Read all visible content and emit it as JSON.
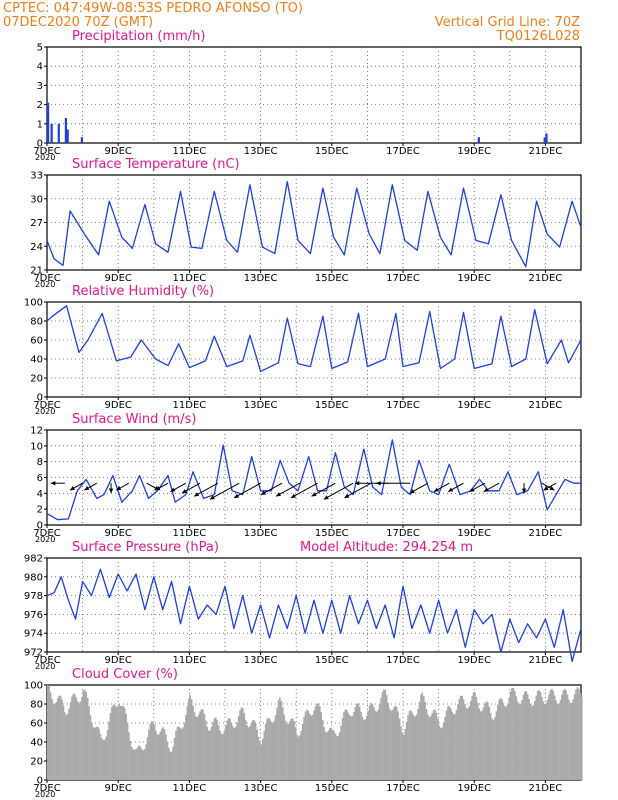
{
  "header": {
    "line1": "CPTEC:  047:49W-08:53S  PEDRO AFONSO (TO)",
    "line2": "07DEC2020 70Z (GMT)",
    "grid_note": "Vertical Grid Line: 70Z",
    "code": "TQ0126L028"
  },
  "colors": {
    "header": "#f07f18",
    "title": "#e0188c",
    "series": "#1f3fe0",
    "cloud": "#a9a9a9",
    "grid": "#606060"
  },
  "x_axis": {
    "ticks": [
      "7DEC",
      "9DEC",
      "11DEC",
      "13DEC",
      "15DEC",
      "17DEC",
      "19DEC",
      "21DEC"
    ],
    "year_label": "2020"
  },
  "chart_data": [
    {
      "type": "bar",
      "title": "Precipitation (mm/h)",
      "ylim": [
        0,
        5
      ],
      "yticks": [
        "0",
        "1",
        "2",
        "3",
        "4",
        "5"
      ],
      "x": [
        7.0,
        7.1,
        7.3,
        7.5,
        7.55,
        7.95,
        19.1,
        20.95,
        21.0
      ],
      "values": [
        2.1,
        1.0,
        1.0,
        1.3,
        0.7,
        0.3,
        0.3,
        0.3,
        0.5
      ]
    },
    {
      "type": "line",
      "title": "Surface Temperature (nC)",
      "ylim": [
        20.5,
        35
      ],
      "yticks": [
        "21",
        "24",
        "27",
        "30",
        "33"
      ],
      "x": [
        7.0,
        7.2,
        7.45,
        7.65,
        8.05,
        8.45,
        8.75,
        9.1,
        9.4,
        9.75,
        10.05,
        10.4,
        10.75,
        11.05,
        11.35,
        11.7,
        12.05,
        12.35,
        12.7,
        13.05,
        13.4,
        13.75,
        14.05,
        14.4,
        14.75,
        15.05,
        15.35,
        15.7,
        16.05,
        16.35,
        16.7,
        17.05,
        17.4,
        17.7,
        18.05,
        18.35,
        18.7,
        19.05,
        19.4,
        19.75,
        20.05,
        20.45,
        20.75,
        21.05,
        21.4,
        21.75,
        22.0
      ],
      "values": [
        25,
        22.2,
        21.2,
        29.5,
        26,
        22.8,
        31,
        25.5,
        23.8,
        30.5,
        24.5,
        23.2,
        32.5,
        24,
        23.8,
        32.5,
        25,
        23.2,
        33.5,
        24,
        23,
        34,
        25,
        23,
        33,
        25.5,
        22.8,
        33,
        26,
        23,
        33.5,
        25,
        23.5,
        32.5,
        25.5,
        22.8,
        33,
        25,
        24.5,
        32,
        25,
        21,
        31,
        26,
        24,
        31,
        27
      ]
    },
    {
      "type": "line",
      "title": "Relative Humidity (%)",
      "ylim": [
        0,
        100
      ],
      "yticks": [
        "0",
        "20",
        "40",
        "60",
        "80",
        "100"
      ],
      "x": [
        7.0,
        7.15,
        7.55,
        7.9,
        8.15,
        8.55,
        8.95,
        9.35,
        9.65,
        10.05,
        10.4,
        10.7,
        11.0,
        11.45,
        11.7,
        12.05,
        12.5,
        12.7,
        13.0,
        13.5,
        13.75,
        14.05,
        14.4,
        14.75,
        15.0,
        15.45,
        15.75,
        16.0,
        16.5,
        16.8,
        17.0,
        17.45,
        17.75,
        18.05,
        18.45,
        18.7,
        19.0,
        19.5,
        19.75,
        20.05,
        20.45,
        20.7,
        21.05,
        21.45,
        21.65,
        22.0
      ],
      "values": [
        80,
        85,
        96,
        47,
        60,
        88,
        38,
        42,
        60,
        40,
        33,
        56,
        31,
        38,
        64,
        32,
        38,
        65,
        27,
        36,
        83,
        35,
        32,
        85,
        30,
        37,
        88,
        32,
        40,
        88,
        32,
        36,
        90,
        30,
        40,
        89,
        30,
        35,
        85,
        32,
        40,
        92,
        35,
        60,
        36,
        60
      ]
    },
    {
      "type": "line",
      "title": "Surface Wind (m/s)",
      "ylim": [
        0,
        12.5
      ],
      "yticks": [
        "0",
        "2",
        "4",
        "6",
        "8",
        "10",
        "12"
      ],
      "x": [
        7.0,
        7.3,
        7.6,
        7.85,
        8.1,
        8.4,
        8.6,
        8.85,
        9.1,
        9.4,
        9.6,
        9.85,
        10.1,
        10.4,
        10.6,
        10.9,
        11.1,
        11.4,
        11.7,
        11.95,
        12.2,
        12.5,
        12.75,
        13.0,
        13.3,
        13.55,
        13.8,
        14.05,
        14.35,
        14.6,
        14.85,
        15.1,
        15.35,
        15.6,
        15.9,
        16.15,
        16.4,
        16.7,
        16.95,
        17.2,
        17.45,
        17.75,
        18.0,
        18.3,
        18.6,
        18.9,
        19.15,
        19.4,
        19.7,
        19.95,
        20.2,
        20.5,
        20.8,
        21.05,
        21.3,
        21.55,
        21.8,
        22.0
      ],
      "values": [
        1.5,
        0.7,
        0.8,
        4.5,
        6,
        3.5,
        4,
        6.5,
        3,
        4.5,
        6.5,
        3.5,
        4.5,
        6.5,
        3,
        4,
        7,
        3.5,
        4,
        10.5,
        4.5,
        4,
        9,
        4.5,
        4.5,
        8.5,
        5.5,
        4.5,
        9,
        4.5,
        4.5,
        9.5,
        5,
        4,
        10,
        5,
        4,
        11.2,
        5,
        4,
        8.5,
        4.5,
        4,
        8,
        4,
        4.5,
        6,
        4.5,
        4.5,
        7,
        4,
        4.5,
        7,
        2,
        4,
        6,
        5.5,
        5.5
      ],
      "arrows": [
        {
          "t": 7.5,
          "speed": 2,
          "dir": "w"
        },
        {
          "t": 8.0,
          "speed": 3,
          "dir": "sw"
        },
        {
          "t": 8.4,
          "speed": 3,
          "dir": "sw"
        },
        {
          "t": 8.8,
          "speed": 3,
          "dir": "s"
        },
        {
          "t": 9.3,
          "speed": 3,
          "dir": "sw"
        },
        {
          "t": 9.8,
          "speed": 3,
          "dir": "se"
        },
        {
          "t": 10.4,
          "speed": 3,
          "dir": "sw"
        },
        {
          "t": 10.9,
          "speed": 4,
          "dir": "sw"
        },
        {
          "t": 11.3,
          "speed": 5,
          "dir": "sw"
        },
        {
          "t": 11.8,
          "speed": 7,
          "dir": "sw"
        },
        {
          "t": 12.4,
          "speed": 9,
          "dir": "sw"
        },
        {
          "t": 13.0,
          "speed": 8,
          "dir": "sw"
        },
        {
          "t": 13.6,
          "speed": 6,
          "dir": "sw"
        },
        {
          "t": 14.1,
          "speed": 7,
          "dir": "sw"
        },
        {
          "t": 14.6,
          "speed": 8,
          "dir": "sw"
        },
        {
          "t": 15.1,
          "speed": 7,
          "dir": "sw"
        },
        {
          "t": 15.6,
          "speed": 9,
          "dir": "sw"
        },
        {
          "t": 16.1,
          "speed": 8,
          "dir": "sw"
        },
        {
          "t": 16.6,
          "speed": 7,
          "dir": "w"
        },
        {
          "t": 17.2,
          "speed": 7,
          "dir": "w"
        },
        {
          "t": 17.7,
          "speed": 5,
          "dir": "sw"
        },
        {
          "t": 18.3,
          "speed": 4,
          "dir": "sw"
        },
        {
          "t": 18.7,
          "speed": 4,
          "dir": "sw"
        },
        {
          "t": 19.3,
          "speed": 4,
          "dir": "sw"
        },
        {
          "t": 19.7,
          "speed": 4,
          "dir": "sw"
        },
        {
          "t": 20.4,
          "speed": 3,
          "dir": "s"
        },
        {
          "t": 20.9,
          "speed": 3,
          "dir": "se"
        },
        {
          "t": 21.3,
          "speed": 3,
          "dir": "sw"
        }
      ]
    },
    {
      "type": "line",
      "title": "Surface Pressure (hPa)",
      "subtitle": "Model Altitude: 294.254 m",
      "ylim": [
        972,
        982
      ],
      "yticks": [
        "972",
        "974",
        "976",
        "978",
        "980",
        "982"
      ],
      "x": [
        7.0,
        7.2,
        7.4,
        7.6,
        7.8,
        8.0,
        8.25,
        8.5,
        8.75,
        9.0,
        9.25,
        9.5,
        9.75,
        10.0,
        10.25,
        10.5,
        10.75,
        11.0,
        11.25,
        11.5,
        11.75,
        12.0,
        12.25,
        12.5,
        12.75,
        13.0,
        13.25,
        13.5,
        13.75,
        14.0,
        14.25,
        14.5,
        14.75,
        15.0,
        15.25,
        15.5,
        15.75,
        16.0,
        16.25,
        16.5,
        16.75,
        17.0,
        17.25,
        17.5,
        17.75,
        18.0,
        18.25,
        18.5,
        18.75,
        19.0,
        19.25,
        19.5,
        19.75,
        20.0,
        20.25,
        20.5,
        20.75,
        21.0,
        21.25,
        21.5,
        21.75,
        22.0
      ],
      "values": [
        978,
        978.3,
        980,
        977.5,
        975.5,
        979.5,
        978,
        980.8,
        977.8,
        980.3,
        978.5,
        980.3,
        976.5,
        980,
        976.5,
        979.5,
        975,
        979,
        975.5,
        977,
        976,
        979,
        974.5,
        978,
        974,
        977,
        973.5,
        977,
        974.5,
        978,
        974,
        977.5,
        974,
        977.5,
        974,
        978,
        975,
        977.5,
        974.5,
        977,
        973.5,
        979,
        974.5,
        977,
        974,
        977.5,
        974,
        976.5,
        972.5,
        976.5,
        975,
        976,
        972,
        975.5,
        973,
        975,
        973.5,
        975.5,
        972.5,
        976.5,
        971,
        974.5
      ]
    },
    {
      "type": "bar",
      "title": "Cloud Cover (%)",
      "ylim": [
        0,
        100
      ],
      "yticks": [
        "0",
        "20",
        "40",
        "60",
        "80",
        "100"
      ],
      "x": [
        7.0,
        7.5,
        8.0,
        8.5,
        9.0,
        9.5,
        10.0,
        10.5,
        11.0,
        11.5,
        12.0,
        12.5,
        13.0,
        13.5,
        14.0,
        14.5,
        15.0,
        15.5,
        16.0,
        16.5,
        17.0,
        17.5,
        18.0,
        18.5,
        19.0,
        19.5,
        20.0,
        20.5,
        21.0,
        21.5,
        22.0
      ],
      "values": [
        95,
        75,
        93,
        40,
        88,
        25,
        60,
        35,
        82,
        60,
        55,
        70,
        45,
        80,
        50,
        80,
        45,
        75,
        70,
        90,
        55,
        85,
        60,
        80,
        85,
        70,
        90,
        85,
        88,
        88,
        90
      ]
    }
  ]
}
